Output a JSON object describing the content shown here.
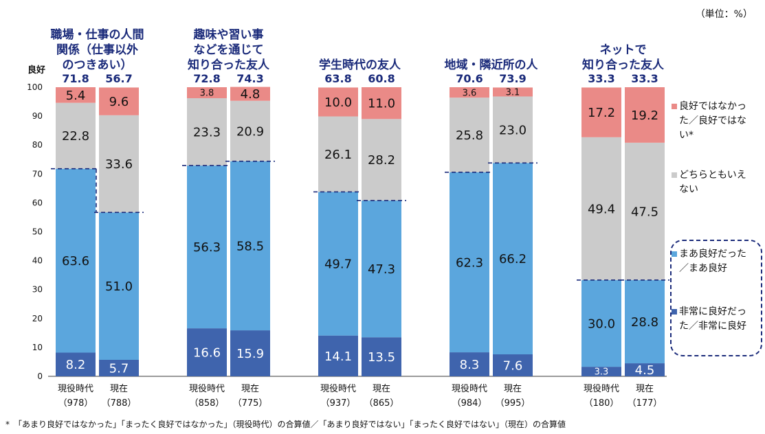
{
  "unit_note": "（単位：%）",
  "footnote": "*　「あまり良好ではなかった」「まったく良好ではなかった」（現役時代）の合算値／「あまり良好ではない」「まったく良好ではない」（現在）の合算値",
  "colors": {
    "very_good": "#3f64ad",
    "somewhat_good": "#5ba6dd",
    "neither": "#cbcbcb",
    "not_good": "#ea8a87",
    "good_line": "#1a2a7a",
    "title_text": "#1a2a7a"
  },
  "chart_data": {
    "type": "bar",
    "stacked": true,
    "ylim": [
      0,
      100
    ],
    "yticks": [
      0,
      10,
      20,
      30,
      40,
      50,
      60,
      70,
      80,
      90,
      100
    ],
    "ylabel": "良好",
    "groups": [
      {
        "title": [
          "職場・仕事の人間",
          "関係（仕事以外",
          "のつきあい）"
        ],
        "bars": [
          {
            "label": "現役時代",
            "n": "（978）",
            "good_total": "71.8",
            "values": [
              8.2,
              63.6,
              22.8,
              5.4
            ]
          },
          {
            "label": "現在",
            "n": "（788）",
            "good_total": "56.7",
            "values": [
              5.7,
              51.0,
              33.6,
              9.6
            ]
          }
        ]
      },
      {
        "title": [
          "趣味や習い事",
          "などを通じて",
          "知り合った友人"
        ],
        "bars": [
          {
            "label": "現役時代",
            "n": "（858）",
            "good_total": "72.8",
            "values": [
              16.6,
              56.3,
              23.3,
              3.8
            ]
          },
          {
            "label": "現在",
            "n": "（775）",
            "good_total": "74.3",
            "values": [
              15.9,
              58.5,
              20.9,
              4.8
            ]
          }
        ]
      },
      {
        "title": [
          "学生時代の友人"
        ],
        "bars": [
          {
            "label": "現役時代",
            "n": "（937）",
            "good_total": "63.8",
            "values": [
              14.1,
              49.7,
              26.1,
              10.0
            ]
          },
          {
            "label": "現在",
            "n": "（865）",
            "good_total": "60.8",
            "values": [
              13.5,
              47.3,
              28.2,
              11.0
            ]
          }
        ]
      },
      {
        "title": [
          "地域・隣近所の人"
        ],
        "bars": [
          {
            "label": "現役時代",
            "n": "（984）",
            "good_total": "70.6",
            "values": [
              8.3,
              62.3,
              25.8,
              3.6
            ]
          },
          {
            "label": "現在",
            "n": "（995）",
            "good_total": "73.9",
            "values": [
              7.6,
              66.2,
              23.0,
              3.1
            ]
          }
        ]
      },
      {
        "title": [
          "ネットで",
          "知り合った友人"
        ],
        "bars": [
          {
            "label": "現役時代",
            "n": "（180）",
            "good_total": "33.3",
            "values": [
              3.3,
              30.0,
              49.4,
              17.2
            ]
          },
          {
            "label": "現在",
            "n": "（177）",
            "good_total": "33.3",
            "values": [
              4.5,
              28.8,
              47.5,
              19.2
            ]
          }
        ]
      }
    ],
    "series": [
      {
        "name": [
          "非常に良好だっ",
          "た／非常に良好"
        ],
        "key": "very_good"
      },
      {
        "name": [
          "まあ良好だった",
          "／まあ良好"
        ],
        "key": "somewhat_good"
      },
      {
        "name": [
          "どちらともいえ",
          "ない"
        ],
        "key": "neither"
      },
      {
        "name": [
          "良好ではなかっ",
          "た／良好ではな",
          "い*"
        ],
        "key": "not_good"
      }
    ],
    "legend_position": "right"
  }
}
